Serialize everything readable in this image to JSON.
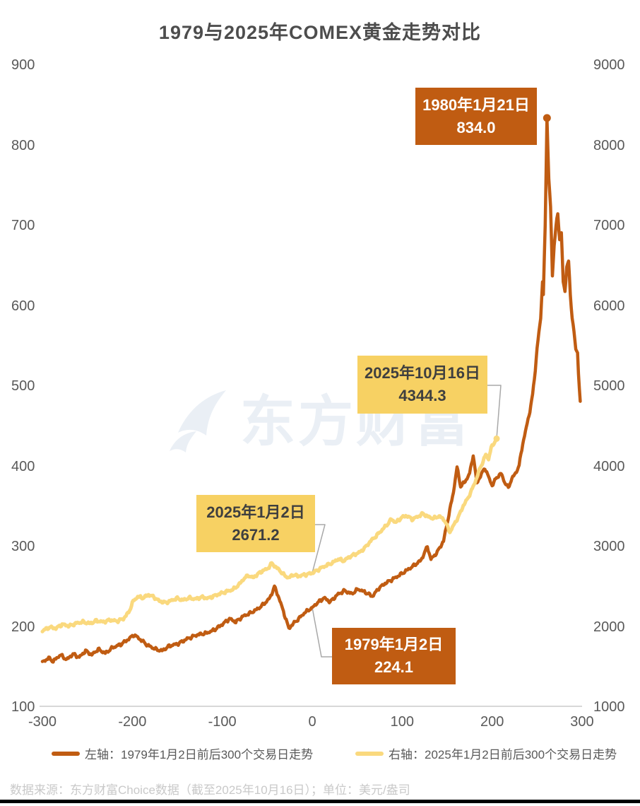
{
  "title": "1979与2025年COMEX黄金走势对比",
  "watermark": {
    "text": "东方财富"
  },
  "annotations": {
    "a1980": {
      "line1": "1980年1月21日",
      "line2": "834.0"
    },
    "a2025oct": {
      "line1": "2025年10月16日",
      "line2": "4344.3"
    },
    "a2025jan": {
      "line1": "2025年1月2日",
      "line2": "2671.2"
    },
    "a1979": {
      "line1": "1979年1月2日",
      "line2": "224.1"
    }
  },
  "legend": {
    "left_label": "左轴：1979年1月2日前后300个交易日走势",
    "right_label": "右轴：2025年1月2日前后300个交易日走势"
  },
  "footer": {
    "source": "数据来源：东方财富Choice数据（截至2025年10月16日）；单位：美元/盎司"
  },
  "colors": {
    "orange": "#c05c12",
    "yellow_line": "#fad97e",
    "yellow_box": "#f7d163",
    "axis_line": "#d8d8d8",
    "connector": "#a8a8a8",
    "tick_text": "#595959",
    "title_text": "#4d4d4d",
    "watermark": "#eaeff5",
    "footer_text": "#c9c9c9"
  },
  "chart_data": {
    "type": "line",
    "title": "1979与2025年COMEX黄金走势对比",
    "grid": false,
    "legend_position": "bottom",
    "x_axis": {
      "ticks": [
        -300,
        -200,
        -100,
        0,
        100,
        200,
        300
      ],
      "range": [
        -300,
        300
      ],
      "unit": "交易日"
    },
    "left_axis": {
      "ticks": [
        900,
        800,
        700,
        600,
        500,
        400,
        300,
        200,
        100
      ],
      "range": [
        100,
        900
      ]
    },
    "right_axis": {
      "ticks": [
        9000,
        8000,
        7000,
        6000,
        5000,
        4000,
        3000,
        2000,
        1000
      ],
      "range": [
        1000,
        9000
      ]
    },
    "series": [
      {
        "name": "左轴：1979年1月2日前后300个交易日走势",
        "axis": "left",
        "color": "#c05c12",
        "stroke_width": 4.5,
        "noise_amp": 2.4,
        "pins": [
          0,
          261
        ],
        "anchors": [
          [
            -300,
            156
          ],
          [
            -293,
            161
          ],
          [
            -288,
            157
          ],
          [
            -280,
            165
          ],
          [
            -273,
            159
          ],
          [
            -266,
            166
          ],
          [
            -259,
            162
          ],
          [
            -252,
            170
          ],
          [
            -245,
            165
          ],
          [
            -238,
            172
          ],
          [
            -230,
            167
          ],
          [
            -222,
            174
          ],
          [
            -213,
            178
          ],
          [
            -205,
            184
          ],
          [
            -198,
            190
          ],
          [
            -191,
            184
          ],
          [
            -183,
            177
          ],
          [
            -174,
            172
          ],
          [
            -167,
            170
          ],
          [
            -159,
            176
          ],
          [
            -149,
            179
          ],
          [
            -139,
            185
          ],
          [
            -128,
            190
          ],
          [
            -118,
            192
          ],
          [
            -109,
            196
          ],
          [
            -100,
            203
          ],
          [
            -92,
            210
          ],
          [
            -85,
            206
          ],
          [
            -77,
            213
          ],
          [
            -69,
            217
          ],
          [
            -61,
            222
          ],
          [
            -54,
            228
          ],
          [
            -47,
            236
          ],
          [
            -42,
            250
          ],
          [
            -37,
            236
          ],
          [
            -32,
            219
          ],
          [
            -26,
            198
          ],
          [
            -21,
            204
          ],
          [
            -15,
            210
          ],
          [
            -9,
            217
          ],
          [
            -4,
            221
          ],
          [
            0,
            224.1
          ],
          [
            6,
            230
          ],
          [
            13,
            236
          ],
          [
            20,
            231
          ],
          [
            28,
            240
          ],
          [
            36,
            245
          ],
          [
            44,
            241
          ],
          [
            51,
            247
          ],
          [
            59,
            243
          ],
          [
            67,
            238
          ],
          [
            74,
            248
          ],
          [
            81,
            254
          ],
          [
            89,
            259
          ],
          [
            98,
            265
          ],
          [
            106,
            271
          ],
          [
            114,
            277
          ],
          [
            121,
            283
          ],
          [
            128,
            300
          ],
          [
            132,
            284
          ],
          [
            139,
            293
          ],
          [
            146,
            307
          ],
          [
            152,
            340
          ],
          [
            157,
            368
          ],
          [
            161,
            399
          ],
          [
            165,
            375
          ],
          [
            170,
            381
          ],
          [
            175,
            391
          ],
          [
            179,
            414
          ],
          [
            183,
            379
          ],
          [
            188,
            390
          ],
          [
            192,
            398
          ],
          [
            197,
            384
          ],
          [
            200,
            376
          ],
          [
            205,
            386
          ],
          [
            210,
            391
          ],
          [
            214,
            380
          ],
          [
            218,
            373
          ],
          [
            222,
            385
          ],
          [
            226,
            391
          ],
          [
            230,
            401
          ],
          [
            234,
            428
          ],
          [
            238,
            448
          ],
          [
            242,
            469
          ],
          [
            245,
            489
          ],
          [
            248,
            520
          ],
          [
            250,
            548
          ],
          [
            252,
            566
          ],
          [
            254,
            584
          ],
          [
            256,
            632
          ],
          [
            257,
            614
          ],
          [
            259,
            700
          ],
          [
            261,
            834
          ],
          [
            263,
            758
          ],
          [
            265,
            724
          ],
          [
            267,
            636
          ],
          [
            269,
            676
          ],
          [
            271,
            700
          ],
          [
            273,
            714
          ],
          [
            275,
            682
          ],
          [
            277,
            692
          ],
          [
            279,
            630
          ],
          [
            281,
            616
          ],
          [
            283,
            650
          ],
          [
            285,
            656
          ],
          [
            287,
            612
          ],
          [
            289,
            584
          ],
          [
            291,
            570
          ],
          [
            293,
            545
          ],
          [
            295,
            540
          ],
          [
            296,
            516
          ],
          [
            298,
            481
          ]
        ]
      },
      {
        "name": "右轴：2025年1月2日前后300个交易日走势",
        "axis": "right",
        "color": "#fad97e",
        "stroke_width": 5,
        "noise_amp": 22,
        "pins": [
          0,
          205
        ],
        "anchors": [
          [
            -300,
            1950
          ],
          [
            -292,
            1995
          ],
          [
            -285,
            1980
          ],
          [
            -278,
            2030
          ],
          [
            -270,
            2010
          ],
          [
            -262,
            2045
          ],
          [
            -255,
            2060
          ],
          [
            -247,
            2040
          ],
          [
            -240,
            2075
          ],
          [
            -232,
            2060
          ],
          [
            -225,
            2085
          ],
          [
            -217,
            2070
          ],
          [
            -210,
            2100
          ],
          [
            -204,
            2180
          ],
          [
            -199,
            2320
          ],
          [
            -194,
            2375
          ],
          [
            -188,
            2360
          ],
          [
            -182,
            2400
          ],
          [
            -176,
            2370
          ],
          [
            -170,
            2320
          ],
          [
            -163,
            2300
          ],
          [
            -156,
            2330
          ],
          [
            -150,
            2355
          ],
          [
            -144,
            2330
          ],
          [
            -137,
            2360
          ],
          [
            -130,
            2345
          ],
          [
            -123,
            2370
          ],
          [
            -116,
            2355
          ],
          [
            -109,
            2385
          ],
          [
            -102,
            2415
          ],
          [
            -95,
            2440
          ],
          [
            -88,
            2465
          ],
          [
            -81,
            2530
          ],
          [
            -76,
            2600
          ],
          [
            -71,
            2640
          ],
          [
            -66,
            2610
          ],
          [
            -60,
            2660
          ],
          [
            -55,
            2700
          ],
          [
            -50,
            2720
          ],
          [
            -45,
            2790
          ],
          [
            -41,
            2750
          ],
          [
            -36,
            2700
          ],
          [
            -31,
            2640
          ],
          [
            -26,
            2610
          ],
          [
            -21,
            2650
          ],
          [
            -16,
            2630
          ],
          [
            -10,
            2645
          ],
          [
            -5,
            2655
          ],
          [
            0,
            2671.2
          ],
          [
            5,
            2700
          ],
          [
            11,
            2740
          ],
          [
            17,
            2770
          ],
          [
            23,
            2800
          ],
          [
            29,
            2845
          ],
          [
            35,
            2820
          ],
          [
            41,
            2870
          ],
          [
            47,
            2900
          ],
          [
            53,
            2930
          ],
          [
            59,
            2990
          ],
          [
            65,
            3070
          ],
          [
            71,
            3130
          ],
          [
            77,
            3200
          ],
          [
            83,
            3270
          ],
          [
            88,
            3340
          ],
          [
            93,
            3300
          ],
          [
            99,
            3360
          ],
          [
            105,
            3385
          ],
          [
            111,
            3340
          ],
          [
            117,
            3370
          ],
          [
            123,
            3410
          ],
          [
            129,
            3370
          ],
          [
            135,
            3350
          ],
          [
            141,
            3380
          ],
          [
            147,
            3330
          ],
          [
            153,
            3180
          ],
          [
            158,
            3280
          ],
          [
            163,
            3380
          ],
          [
            168,
            3510
          ],
          [
            173,
            3600
          ],
          [
            178,
            3720
          ],
          [
            183,
            3860
          ],
          [
            187,
            3990
          ],
          [
            190,
            4060
          ],
          [
            193,
            4150
          ],
          [
            196,
            4090
          ],
          [
            199,
            4230
          ],
          [
            202,
            4290
          ],
          [
            205,
            4344.3
          ]
        ]
      }
    ],
    "markers": [
      {
        "series": 0,
        "x": 261,
        "value": 834.0,
        "label": "1980年1月21日",
        "dot": true
      },
      {
        "series": 1,
        "x": 205,
        "value": 4344.3,
        "label": "2025年10月16日",
        "dot": true
      },
      {
        "series": 0,
        "x": 0,
        "value": 224.1,
        "label": "1979年1月2日",
        "dot": false
      },
      {
        "series": 1,
        "x": 0,
        "value": 2671.2,
        "label": "2025年1月2日",
        "dot": false
      }
    ]
  }
}
